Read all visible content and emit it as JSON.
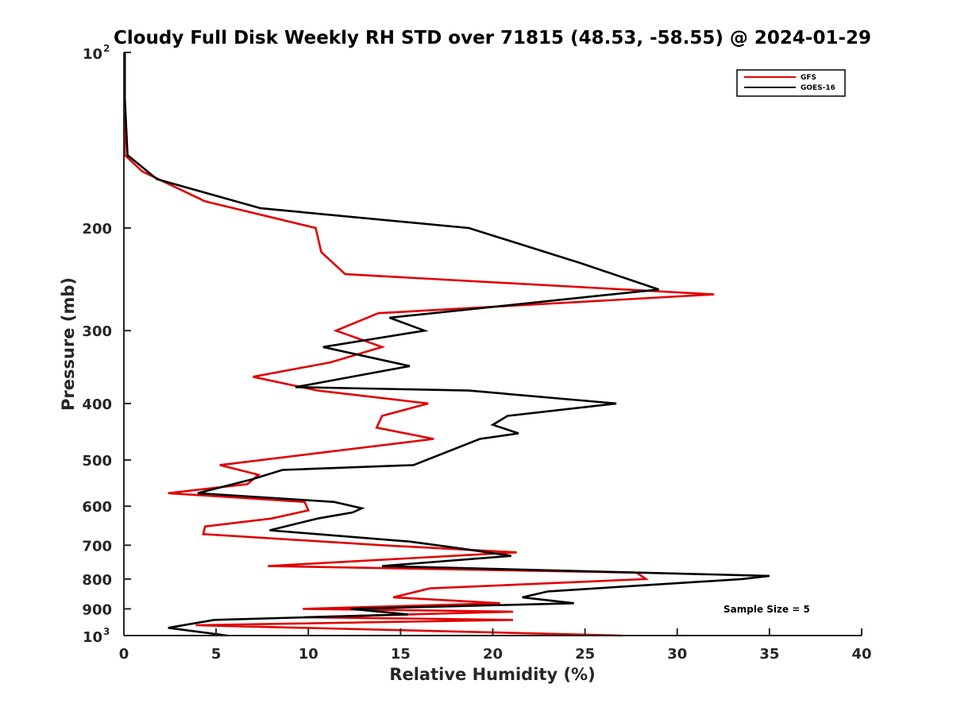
{
  "chart_data": {
    "type": "line",
    "title": "Cloudy Full Disk Weekly RH STD over 71815 (48.53, -58.55) @ 2024-01-29",
    "xlabel": "Relative Humidity (%)",
    "ylabel": "Pressure (mb)",
    "xlim": [
      0,
      40
    ],
    "ylim": [
      100,
      1000
    ],
    "yscale": "log",
    "y_reversed": true,
    "xticks": [
      0,
      5,
      10,
      15,
      20,
      25,
      30,
      35,
      40
    ],
    "yticks": [
      {
        "value": 100,
        "base": "10",
        "exp": "2"
      },
      {
        "value": 200,
        "label": "200"
      },
      {
        "value": 300,
        "label": "300"
      },
      {
        "value": 400,
        "label": "400"
      },
      {
        "value": 500,
        "label": "500"
      },
      {
        "value": 600,
        "label": "600"
      },
      {
        "value": 700,
        "label": "700"
      },
      {
        "value": 800,
        "label": "800"
      },
      {
        "value": 900,
        "label": "900"
      },
      {
        "value": 1000,
        "base": "10",
        "exp": "3"
      }
    ],
    "grid": false,
    "legend_position": "top-right",
    "series": [
      {
        "name": "GFS",
        "color": "#e00000",
        "points": [
          [
            0.05,
            100
          ],
          [
            0.05,
            120
          ],
          [
            0.05,
            150
          ],
          [
            1.0,
            160
          ],
          [
            4.4,
            180
          ],
          [
            10.4,
            200
          ],
          [
            10.7,
            220
          ],
          [
            12.0,
            240
          ],
          [
            32.0,
            260
          ],
          [
            13.8,
            280
          ],
          [
            11.5,
            300
          ],
          [
            14.0,
            320
          ],
          [
            11.2,
            340
          ],
          [
            7.0,
            360
          ],
          [
            10.5,
            380
          ],
          [
            16.5,
            400
          ],
          [
            14.0,
            420
          ],
          [
            13.7,
            440
          ],
          [
            16.8,
            460
          ],
          [
            5.2,
            510
          ],
          [
            7.3,
            530
          ],
          [
            6.7,
            550
          ],
          [
            2.4,
            570
          ],
          [
            9.8,
            590
          ],
          [
            10.0,
            610
          ],
          [
            8.0,
            630
          ],
          [
            4.4,
            650
          ],
          [
            4.3,
            670
          ],
          [
            14.0,
            700
          ],
          [
            21.3,
            720
          ],
          [
            7.8,
            760
          ],
          [
            27.8,
            780
          ],
          [
            28.3,
            800
          ],
          [
            16.6,
            830
          ],
          [
            14.6,
            860
          ],
          [
            20.4,
            880
          ],
          [
            9.7,
            900
          ],
          [
            21.1,
            910
          ],
          [
            9.8,
            930
          ],
          [
            21.1,
            940
          ],
          [
            3.9,
            960
          ],
          [
            27.0,
            1000
          ]
        ]
      },
      {
        "name": "GOES-16",
        "color": "#000000",
        "points": [
          [
            0.05,
            100
          ],
          [
            0.05,
            120
          ],
          [
            0.2,
            150
          ],
          [
            1.8,
            165
          ],
          [
            7.4,
            185
          ],
          [
            18.7,
            200
          ],
          [
            24.8,
            230
          ],
          [
            29.0,
            255
          ],
          [
            14.4,
            285
          ],
          [
            16.3,
            300
          ],
          [
            10.8,
            320
          ],
          [
            15.5,
            345
          ],
          [
            9.3,
            375
          ],
          [
            18.7,
            380
          ],
          [
            26.7,
            400
          ],
          [
            20.8,
            420
          ],
          [
            20.0,
            435
          ],
          [
            21.4,
            450
          ],
          [
            19.3,
            460
          ],
          [
            15.7,
            510
          ],
          [
            8.6,
            520
          ],
          [
            6.9,
            540
          ],
          [
            4.0,
            570
          ],
          [
            11.4,
            590
          ],
          [
            12.9,
            605
          ],
          [
            12.4,
            615
          ],
          [
            10.5,
            630
          ],
          [
            7.9,
            660
          ],
          [
            15.5,
            690
          ],
          [
            18.4,
            710
          ],
          [
            21.0,
            730
          ],
          [
            14.0,
            760
          ],
          [
            35.0,
            790
          ],
          [
            33.5,
            800
          ],
          [
            23.0,
            840
          ],
          [
            21.6,
            860
          ],
          [
            24.4,
            880
          ],
          [
            12.3,
            900
          ],
          [
            15.4,
            920
          ],
          [
            4.9,
            940
          ],
          [
            2.4,
            970
          ],
          [
            5.6,
            1000
          ]
        ]
      }
    ],
    "annotation": "Sample Size = 5"
  }
}
